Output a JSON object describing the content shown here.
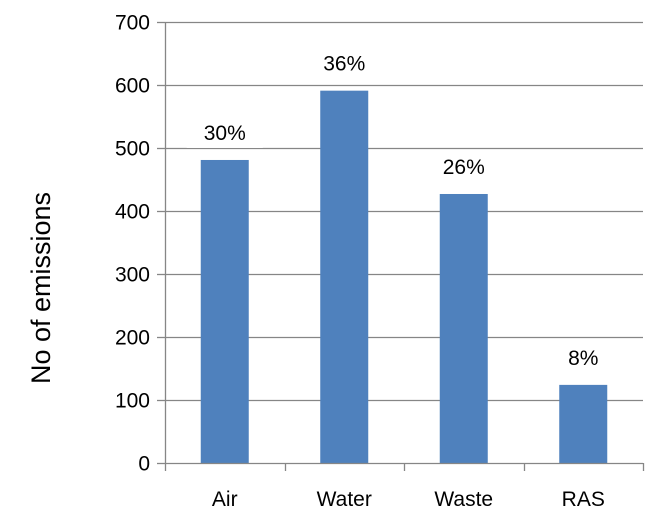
{
  "chart_data": {
    "type": "bar",
    "categories": [
      "Air",
      "Water",
      "Waste",
      "RAS"
    ],
    "values": [
      481,
      591,
      427,
      124
    ],
    "data_labels": [
      "30%",
      "36%",
      "26%",
      "8%"
    ],
    "ylabel": "No of emissions",
    "ylim": [
      0,
      700
    ],
    "yticks": [
      0,
      100,
      200,
      300,
      400,
      500,
      600,
      700
    ],
    "grid": true,
    "bar_color": "#4f81bd",
    "grid_color": "#868686"
  }
}
